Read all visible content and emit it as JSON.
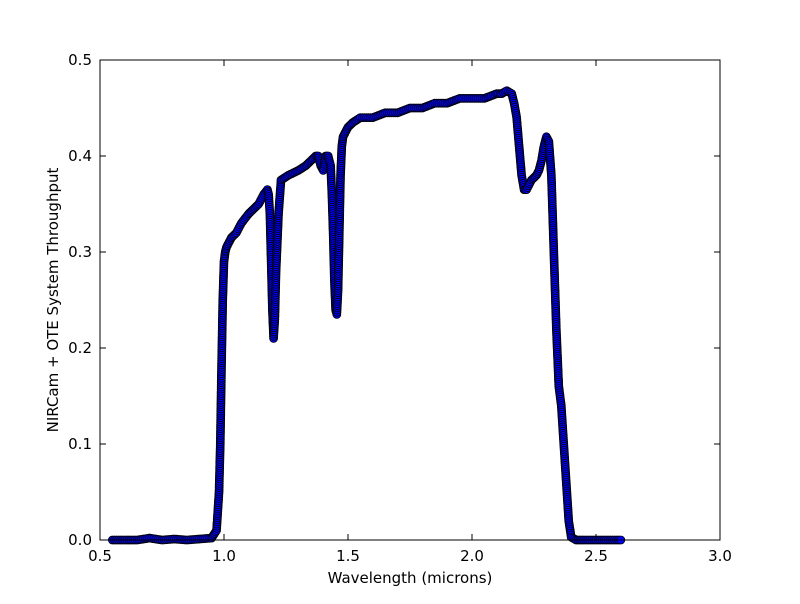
{
  "chart_data": {
    "type": "scatter",
    "title": "",
    "xlabel": "Wavelength (microns)",
    "ylabel": "NIRCam + OTE System Throughput",
    "xlim": [
      0.5,
      3.0
    ],
    "ylim": [
      0.0,
      0.5
    ],
    "xticks": [
      0.5,
      1.0,
      1.5,
      2.0,
      2.5,
      3.0
    ],
    "xtick_labels": [
      "0.5",
      "1.0",
      "1.5",
      "2.0",
      "2.5",
      "3.0"
    ],
    "yticks": [
      0.0,
      0.1,
      0.2,
      0.3,
      0.4,
      0.5
    ],
    "ytick_labels": [
      "0.0",
      "0.1",
      "0.2",
      "0.3",
      "0.4",
      "0.5"
    ],
    "grid": false,
    "legend": "none",
    "marker_color": "#0000ff",
    "marker_edge_color": "#000000",
    "series": [
      {
        "x": [
          0.55,
          0.6,
          0.65,
          0.7,
          0.75,
          0.8,
          0.85,
          0.9,
          0.95,
          0.97,
          0.98,
          0.985,
          0.99,
          0.995,
          1.0,
          1.005,
          1.01,
          1.02,
          1.03,
          1.05,
          1.07,
          1.1,
          1.12,
          1.14,
          1.16,
          1.175,
          1.18,
          1.185,
          1.19,
          1.195,
          1.2,
          1.205,
          1.21,
          1.22,
          1.23,
          1.26,
          1.3,
          1.33,
          1.35,
          1.37,
          1.38,
          1.39,
          1.4,
          1.41,
          1.42,
          1.43,
          1.435,
          1.44,
          1.445,
          1.45,
          1.455,
          1.46,
          1.465,
          1.47,
          1.475,
          1.48,
          1.49,
          1.5,
          1.52,
          1.55,
          1.6,
          1.65,
          1.7,
          1.75,
          1.8,
          1.85,
          1.9,
          1.95,
          2.0,
          2.05,
          2.1,
          2.12,
          2.14,
          2.16,
          2.17,
          2.18,
          2.19,
          2.2,
          2.21,
          2.22,
          2.24,
          2.26,
          2.27,
          2.28,
          2.29,
          2.3,
          2.31,
          2.32,
          2.33,
          2.34,
          2.35,
          2.36,
          2.37,
          2.38,
          2.39,
          2.4,
          2.42,
          2.45,
          2.5,
          2.55,
          2.6
        ],
        "y": [
          0.0,
          0.0,
          0.0,
          0.002,
          0.0,
          0.001,
          0.0,
          0.001,
          0.002,
          0.01,
          0.05,
          0.1,
          0.18,
          0.25,
          0.29,
          0.3,
          0.305,
          0.31,
          0.315,
          0.32,
          0.33,
          0.34,
          0.345,
          0.35,
          0.36,
          0.365,
          0.36,
          0.34,
          0.29,
          0.24,
          0.21,
          0.23,
          0.28,
          0.34,
          0.375,
          0.38,
          0.385,
          0.39,
          0.395,
          0.4,
          0.4,
          0.39,
          0.385,
          0.4,
          0.4,
          0.39,
          0.36,
          0.32,
          0.27,
          0.24,
          0.235,
          0.26,
          0.32,
          0.38,
          0.41,
          0.42,
          0.425,
          0.43,
          0.435,
          0.44,
          0.44,
          0.445,
          0.445,
          0.45,
          0.45,
          0.455,
          0.455,
          0.46,
          0.46,
          0.46,
          0.465,
          0.465,
          0.468,
          0.465,
          0.455,
          0.44,
          0.41,
          0.38,
          0.365,
          0.365,
          0.375,
          0.38,
          0.385,
          0.395,
          0.41,
          0.42,
          0.415,
          0.38,
          0.3,
          0.22,
          0.16,
          0.14,
          0.1,
          0.06,
          0.02,
          0.003,
          0.0,
          0.0,
          0.0,
          0.0,
          0.0
        ]
      }
    ]
  }
}
